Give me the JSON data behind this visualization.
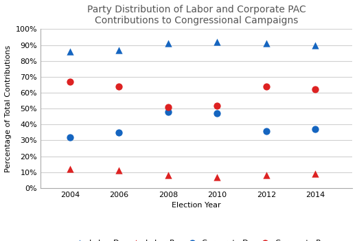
{
  "title": "Party Distribution of Labor and Corporate PAC\nContributions to Congressional Campaigns",
  "xlabel": "Election Year",
  "ylabel": "Percentage of Total Contributions",
  "years": [
    2004,
    2006,
    2008,
    2010,
    2012,
    2014
  ],
  "labor_D": [
    0.86,
    0.87,
    0.91,
    0.92,
    0.91,
    0.9
  ],
  "labor_R": [
    0.12,
    0.11,
    0.08,
    0.07,
    0.08,
    0.09
  ],
  "corporate_D": [
    0.32,
    0.35,
    0.48,
    0.47,
    0.36,
    0.37
  ],
  "corporate_R": [
    0.67,
    0.64,
    0.51,
    0.52,
    0.64,
    0.62
  ],
  "color_blue": "#1565C0",
  "color_red": "#DD2222",
  "marker_triangle": "^",
  "marker_circle": "o",
  "marker_size": 55,
  "ylim": [
    0,
    1.0
  ],
  "yticks": [
    0,
    0.1,
    0.2,
    0.3,
    0.4,
    0.5,
    0.6,
    0.7,
    0.8,
    0.9,
    1.0
  ],
  "legend_labels": [
    "Labor D",
    "Labor R",
    "Corporate D",
    "Corporate R"
  ],
  "background_color": "#ffffff",
  "grid_color": "#d0d0d0",
  "title_fontsize": 10,
  "label_fontsize": 8,
  "tick_fontsize": 8,
  "legend_fontsize": 8
}
